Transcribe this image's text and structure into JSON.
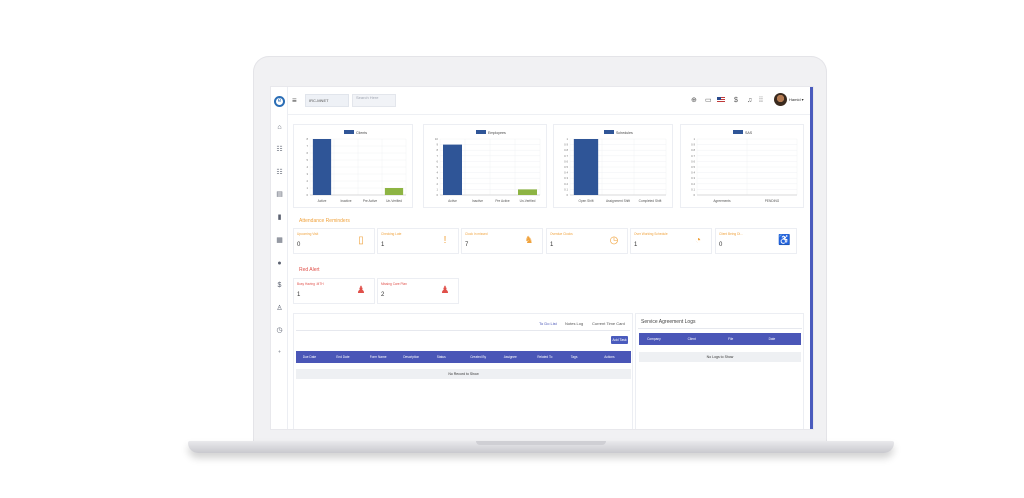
{
  "topbar": {
    "menu_icon": "hamburger-icon",
    "company_select_value": "IRC-MNET",
    "search_placeholder": "Search Here",
    "user_name": "Hamid"
  },
  "sidebar": {
    "icons": [
      "home-icon",
      "users-icon",
      "user-group-icon",
      "document-icon",
      "file-icon",
      "calendar-icon",
      "globe-icon",
      "dollar-icon",
      "org-chart-icon",
      "clock-icon",
      "user-add-icon"
    ]
  },
  "charts": {
    "clients": {
      "legend": "Clients",
      "categories": [
        "Active",
        "Inactive",
        "Pre Active",
        "Un-Verified"
      ],
      "values": [
        8,
        0,
        0,
        1
      ]
    },
    "employees": {
      "legend": "Employees",
      "categories": [
        "Active",
        "Inactive",
        "Pre Active",
        "Un-Verified"
      ],
      "values": [
        9,
        0,
        0,
        1
      ]
    },
    "schedules": {
      "legend": "Schedules",
      "categories": [
        "Open Shift",
        "Assignment Shift",
        "Completed Shift"
      ],
      "values": [
        1,
        0,
        0
      ]
    },
    "sas": {
      "legend": "SAS",
      "categories": [
        "Agreements",
        "PENDING"
      ],
      "values": [
        0,
        0
      ]
    }
  },
  "chart_data": [
    {
      "type": "bar",
      "categories": [
        "Active",
        "Inactive",
        "Pre Active",
        "Un-Verified"
      ],
      "series": [
        {
          "name": "Clients",
          "values": [
            8,
            0,
            0,
            1
          ]
        }
      ],
      "ylim": [
        0,
        8
      ]
    },
    {
      "type": "bar",
      "categories": [
        "Active",
        "Inactive",
        "Pre Active",
        "Un-Verified"
      ],
      "series": [
        {
          "name": "Employees",
          "values": [
            9,
            0,
            0,
            1
          ]
        }
      ],
      "ylim": [
        0,
        10
      ]
    },
    {
      "type": "bar",
      "categories": [
        "Open Shift",
        "Assignment Shift",
        "Completed Shift"
      ],
      "series": [
        {
          "name": "Schedules",
          "values": [
            1,
            0,
            0
          ]
        }
      ],
      "ylim": [
        0,
        1
      ]
    },
    {
      "type": "bar",
      "categories": [
        "Agreements",
        "PENDING"
      ],
      "series": [
        {
          "name": "SAS",
          "values": [
            0,
            0
          ]
        }
      ],
      "ylim": [
        0,
        1
      ]
    }
  ],
  "attendance": {
    "title": "Attendance Reminders",
    "cards": [
      {
        "label": "Upcoming Visit",
        "value": "0",
        "icon": "document-icon"
      },
      {
        "label": "Checking Late",
        "value": "1",
        "icon": "alert-icon"
      },
      {
        "label": "Clock In missed",
        "value": "7",
        "icon": "person-walk-icon"
      },
      {
        "label": "Overdue Clocks",
        "value": "1",
        "icon": "clock-icon"
      },
      {
        "label": "Over Working Schedule",
        "value": "1",
        "icon": "timer-icon"
      },
      {
        "label": "Client Being Di...",
        "value": "0",
        "icon": "wheelchair-icon"
      }
    ]
  },
  "alerts": {
    "title": "Red Alert",
    "cards": [
      {
        "label": "Busy Having .MTH",
        "value": "1",
        "icon": "user-remove-icon"
      },
      {
        "label": "Missing Care Plan",
        "value": "2",
        "icon": "user-remove-icon"
      }
    ]
  },
  "tasks": {
    "tabs": [
      "To Do List",
      "Notes Log",
      "Current Time Card"
    ],
    "add_task_label": "Add Task",
    "columns": [
      "Due Date",
      "End Date",
      "Form Name",
      "Description",
      "Status",
      "Created By",
      "Assignee",
      "Related To",
      "Tags",
      "Actions"
    ],
    "empty_text": "No Record to Show"
  },
  "service_logs": {
    "title": "Service Agreement Logs",
    "columns": [
      "Company",
      "Client",
      "File",
      "Date"
    ],
    "empty_text": "No Logs to Show"
  },
  "colors": {
    "bar_main": "#2f5597",
    "bar_small": "#8db443",
    "table_header": "#4a56b7",
    "attendance_title": "#f0a23c",
    "alert_title": "#e0504a"
  }
}
